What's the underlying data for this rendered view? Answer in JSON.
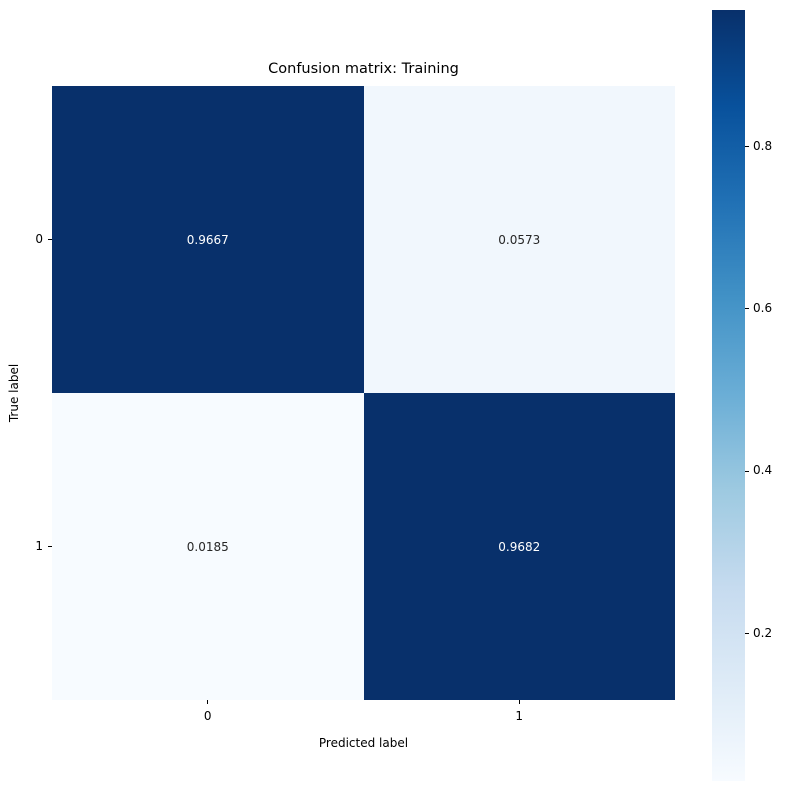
{
  "figure": {
    "background": "#ffffff"
  },
  "chart_data": {
    "type": "heatmap",
    "title": "Confusion matrix: Training",
    "xlabel": "Predicted label",
    "ylabel": "True label",
    "x_tick_labels": [
      "0",
      "1"
    ],
    "y_tick_labels": [
      "0",
      "1"
    ],
    "matrix": [
      [
        0.9667,
        0.0573
      ],
      [
        0.0185,
        0.9682
      ]
    ],
    "cell_labels": [
      [
        "0.9667",
        "0.0573"
      ],
      [
        "0.0185",
        "0.9682"
      ]
    ],
    "cell_colors": [
      [
        "#08306b",
        "#f1f7fd"
      ],
      [
        "#f7fbff",
        "#08306b"
      ]
    ],
    "cell_text_colors": [
      [
        "#ffffff",
        "#262626"
      ],
      [
        "#262626",
        "#ffffff"
      ]
    ],
    "colormap": "Blues",
    "colormap_stops": [
      "#f7fbff",
      "#deebf7",
      "#c6dbef",
      "#9ecae1",
      "#6baed6",
      "#4292c6",
      "#2171b5",
      "#08519c",
      "#08306b"
    ],
    "colorbar_ticks": [
      "0.2",
      "0.4",
      "0.6",
      "0.8"
    ],
    "colorbar_tick_values": [
      0.2,
      0.4,
      0.6,
      0.8
    ],
    "vmin": 0.0185,
    "vmax": 0.9682,
    "grid": false,
    "legend_position": "right-colorbar"
  }
}
